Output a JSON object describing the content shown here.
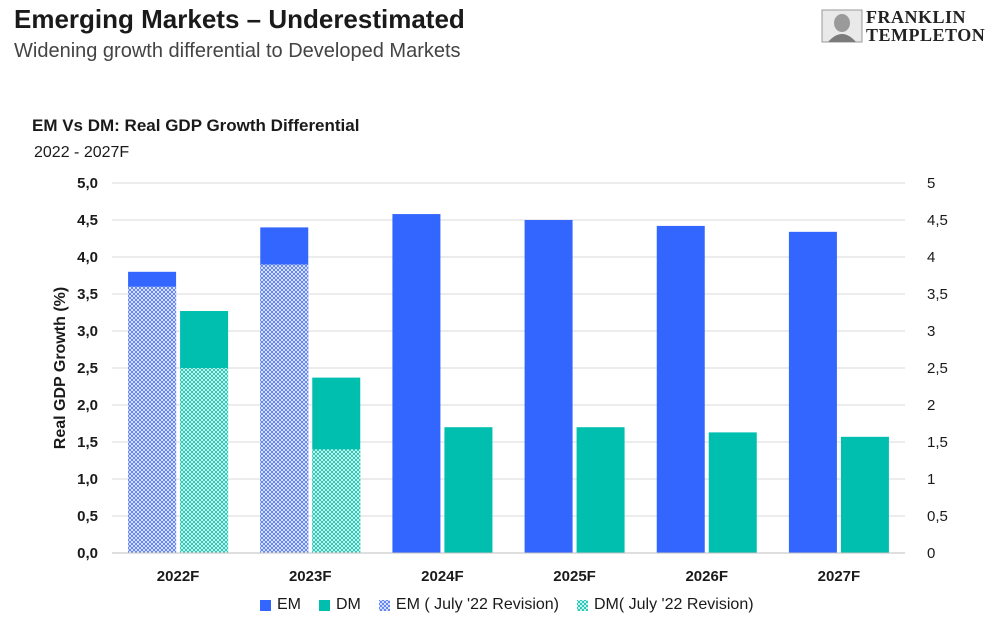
{
  "header": {
    "title": "Emerging Markets – Underestimated",
    "subtitle": "Widening growth differential to Developed Markets"
  },
  "logo": {
    "line1": "FRANKLIN",
    "line2": "TEMPLETON",
    "icon": "benjamin-franklin-portrait-icon"
  },
  "colors": {
    "em": "#3366FF",
    "dm": "#00BFAE",
    "em_revision_pattern": "#8FA6F2",
    "dm_revision_pattern": "#7FDCCF"
  },
  "chart_data": {
    "type": "bar",
    "title": "EM Vs DM: Real GDP Growth Differential",
    "subtitle": "2022 - 2027F",
    "ylabel": "Real GDP Growth (%)",
    "xlabel": "",
    "ylim": [
      0,
      5
    ],
    "y_ticks_left": [
      "0,0",
      "0,5",
      "1,0",
      "1,5",
      "2,0",
      "2,5",
      "3,0",
      "3,5",
      "4,0",
      "4,5",
      "5,0"
    ],
    "y_ticks_right": [
      "0",
      "0,5",
      "1",
      "1,5",
      "2",
      "2,5",
      "3",
      "3,5",
      "4",
      "4,5",
      "5"
    ],
    "categories": [
      "2022F",
      "2023F",
      "2024F",
      "2025F",
      "2026F",
      "2027F"
    ],
    "series": [
      {
        "name": "EM",
        "values": [
          3.8,
          4.4,
          4.58,
          4.5,
          4.42,
          4.34
        ]
      },
      {
        "name": "DM",
        "values": [
          3.27,
          2.37,
          1.7,
          1.7,
          1.63,
          1.57
        ]
      },
      {
        "name": "EM ( July '22 Revision)",
        "values": [
          3.6,
          3.9,
          null,
          null,
          null,
          null
        ]
      },
      {
        "name": "DM( July '22 Revision)",
        "values": [
          2.5,
          1.4,
          null,
          null,
          null,
          null
        ]
      }
    ],
    "grid": true,
    "legend_position": "bottom"
  }
}
